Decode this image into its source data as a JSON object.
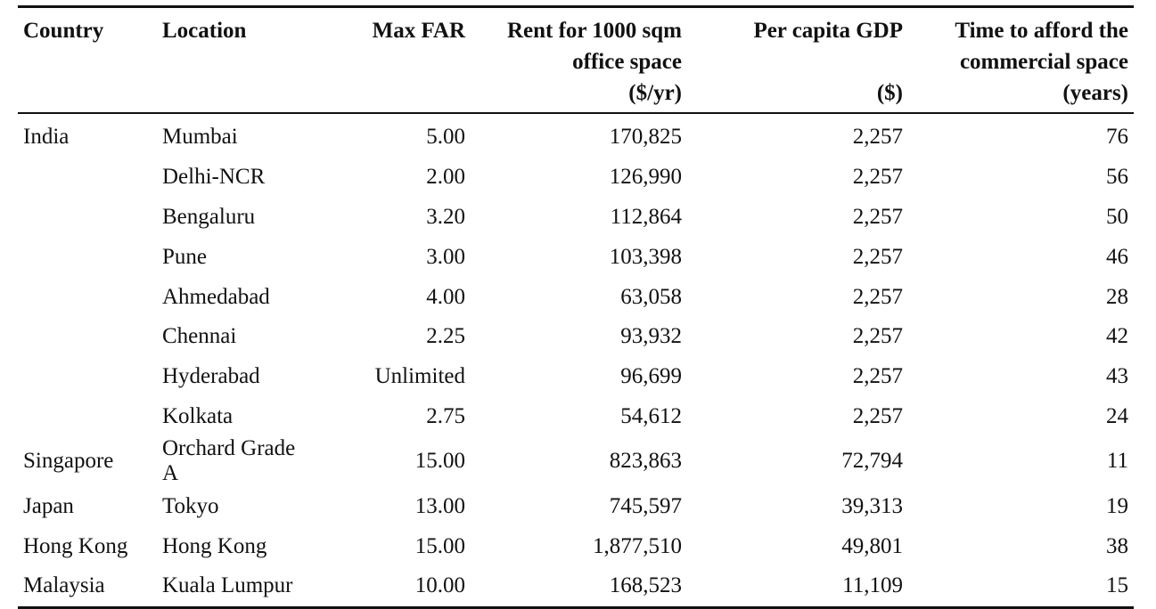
{
  "table": {
    "headers": [
      {
        "lines": [
          "Country"
        ],
        "align": "l"
      },
      {
        "lines": [
          "Location"
        ],
        "align": "l"
      },
      {
        "lines": [
          "Max FAR"
        ],
        "align": "r"
      },
      {
        "lines": [
          "Rent for 1000 sqm",
          "office space",
          "($/yr)"
        ],
        "align": "r"
      },
      {
        "lines": [
          "Per capita GDP",
          "",
          "($)"
        ],
        "align": "r"
      },
      {
        "lines": [
          "Time to afford the",
          "commercial space",
          "(years)"
        ],
        "align": "r"
      }
    ],
    "rows": [
      [
        "India",
        "Mumbai",
        "5.00",
        "170,825",
        "2,257",
        "76"
      ],
      [
        "",
        "Delhi-NCR",
        "2.00",
        "126,990",
        "2,257",
        "56"
      ],
      [
        "",
        "Bengaluru",
        "3.20",
        "112,864",
        "2,257",
        "50"
      ],
      [
        "",
        "Pune",
        "3.00",
        "103,398",
        "2,257",
        "46"
      ],
      [
        "",
        "Ahmedabad",
        "4.00",
        "63,058",
        "2,257",
        "28"
      ],
      [
        "",
        "Chennai",
        "2.25",
        "93,932",
        "2,257",
        "42"
      ],
      [
        "",
        "Hyderabad",
        "Unlimited",
        "96,699",
        "2,257",
        "43"
      ],
      [
        "",
        "Kolkata",
        "2.75",
        "54,612",
        "2,257",
        "24"
      ],
      [
        "Singapore",
        "Orchard Grade A",
        "15.00",
        "823,863",
        "72,794",
        "11"
      ],
      [
        "Japan",
        "Tokyo",
        "13.00",
        "745,597",
        "39,313",
        "19"
      ],
      [
        "Hong Kong",
        "Hong Kong",
        "15.00",
        "1,877,510",
        "49,801",
        "38"
      ],
      [
        "Malaysia",
        "Kuala Lumpur",
        "10.00",
        "168,523",
        "11,109",
        "15"
      ]
    ]
  }
}
